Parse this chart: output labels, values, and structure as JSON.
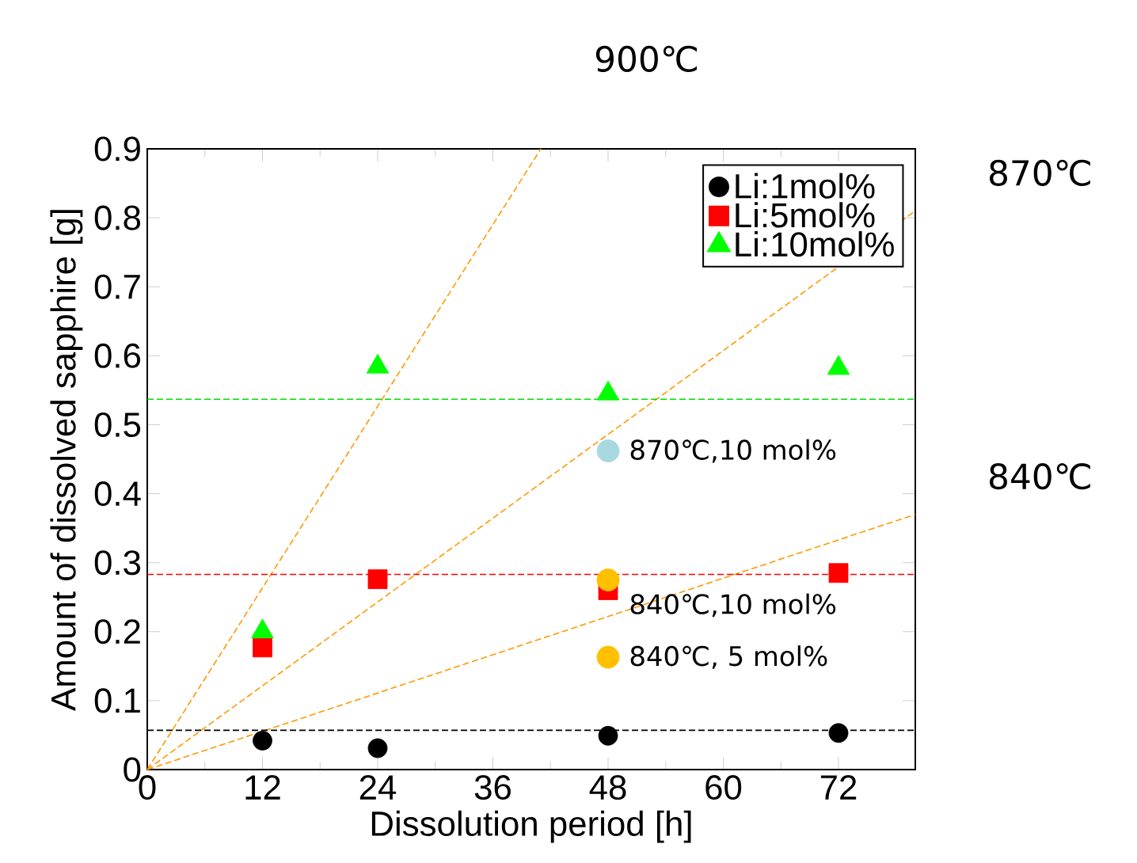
{
  "chart_data": {
    "type": "scatter",
    "xlabel": "Dissolution period [h]",
    "ylabel": "Amount of dissolved sapphire [g]",
    "xlim": [
      0,
      80
    ],
    "ylim": [
      0,
      0.9
    ],
    "xticks": [
      0,
      12,
      24,
      36,
      48,
      60,
      72
    ],
    "yticks": [
      0,
      0.1,
      0.2,
      0.3,
      0.4,
      0.5,
      0.6,
      0.7,
      0.8,
      0.9
    ],
    "legend": "top right",
    "grid": false,
    "series": [
      {
        "name": "Li:1mol%",
        "color": "#000000",
        "marker": "circle",
        "x": [
          12,
          24,
          48,
          72
        ],
        "values": [
          0.042,
          0.031,
          0.049,
          0.053
        ]
      },
      {
        "name": "Li:5mol%",
        "color": "#ff0000",
        "marker": "square",
        "x": [
          12,
          24,
          48,
          72
        ],
        "values": [
          0.177,
          0.276,
          0.26,
          0.285
        ]
      },
      {
        "name": "Li:10mol%",
        "color": "#00ff00",
        "marker": "triangle",
        "x": [
          12,
          24,
          48,
          72
        ],
        "values": [
          0.2,
          0.584,
          0.545,
          0.582
        ]
      },
      {
        "type": "scatter",
        "marker": "circle",
        "x": [
          48,
          48,
          48
        ],
        "values": [
          0.462,
          0.275,
          0.163
        ],
        "colors": [
          "#a8d8e0",
          "#ffc000",
          "#ffc000"
        ]
      },
      {
        "type": "line",
        "name": "900℃",
        "color": "#ff9900",
        "line_style": "dashed",
        "x": [
          0,
          41
        ],
        "values": [
          0,
          0.9
        ]
      },
      {
        "type": "line",
        "name": "870℃",
        "color": "#ff9900",
        "line_style": "dashed",
        "x": [
          0,
          80
        ],
        "values": [
          0,
          0.81
        ]
      },
      {
        "type": "line",
        "name": "840℃",
        "color": "#ff9900",
        "line_style": "dashed",
        "x": [
          0,
          80
        ],
        "values": [
          0,
          0.37
        ]
      }
    ],
    "ref_lines": [
      {
        "axis": "y",
        "value": 0.537,
        "color": "#00dd00",
        "line_style": "dashed"
      },
      {
        "axis": "y",
        "value": 0.283,
        "color": "#ff0000",
        "line_style": "dashed"
      },
      {
        "axis": "y",
        "value": 0.057,
        "color": "#000000",
        "line_style": "dashed"
      }
    ],
    "annotations": [
      "870℃,10 mol%",
      "840℃,10 mol%",
      "840℃, 5 mol%"
    ]
  }
}
